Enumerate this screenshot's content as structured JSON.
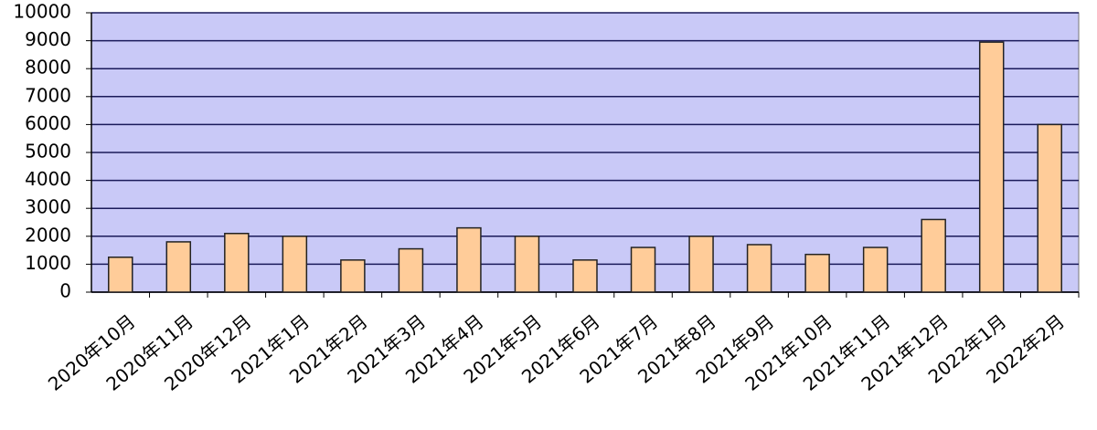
{
  "chart_data": {
    "type": "bar",
    "categories": [
      "2020年10月",
      "2020年11月",
      "2020年12月",
      "2021年1月",
      "2021年2月",
      "2021年3月",
      "2021年4月",
      "2021年5月",
      "2021年6月",
      "2021年7月",
      "2021年8月",
      "2021年9月",
      "2021年10月",
      "2021年11月",
      "2021年12月",
      "2022年1月",
      "2022年2月"
    ],
    "values": [
      1250,
      1800,
      2100,
      2000,
      1150,
      1550,
      2300,
      2000,
      1150,
      1600,
      2000,
      1700,
      1350,
      1600,
      2600,
      8950,
      6000
    ],
    "color": "#ffcc99",
    "ylim": [
      0,
      10000
    ],
    "yticks": [
      0,
      1000,
      2000,
      3000,
      4000,
      5000,
      6000,
      7000,
      8000,
      9000,
      10000
    ],
    "grid": true
  }
}
